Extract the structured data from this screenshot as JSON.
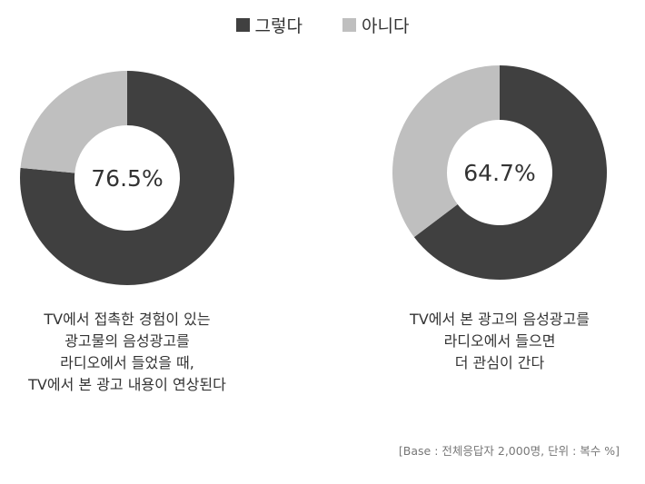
{
  "legend": [
    {
      "label": "그렇다",
      "color": "#404040"
    },
    {
      "label": "아니다",
      "color": "#bfbfbf"
    }
  ],
  "chart_data": [
    {
      "type": "pie",
      "donut": true,
      "center_label": "76.5%",
      "slices": [
        {
          "name": "그렇다",
          "value": 76.5,
          "color": "#404040"
        },
        {
          "name": "아니다",
          "value": 23.5,
          "color": "#bfbfbf"
        }
      ],
      "caption": [
        "TV에서 접촉한 경험이 있는",
        "광고물의 음성광고를",
        "라디오에서 들었을 때,",
        "TV에서 본 광고 내용이 연상된다"
      ]
    },
    {
      "type": "pie",
      "donut": true,
      "center_label": "64.7%",
      "slices": [
        {
          "name": "그렇다",
          "value": 64.7,
          "color": "#404040"
        },
        {
          "name": "아니다",
          "value": 35.3,
          "color": "#bfbfbf"
        }
      ],
      "caption": [
        "TV에서 본 광고의 음성광고를",
        "라디오에서 들으면",
        "더 관심이 간다"
      ]
    }
  ],
  "footnote": "[Base : 전체응답자 2,000명, 단위 : 복수 %]"
}
